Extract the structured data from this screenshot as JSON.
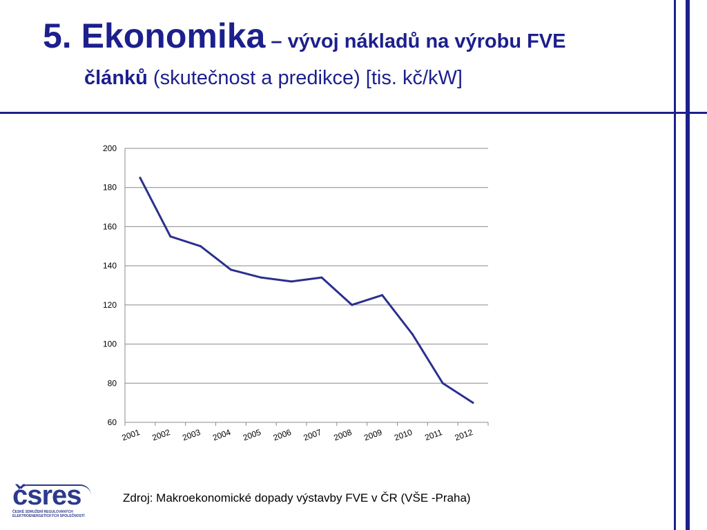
{
  "title": {
    "main": "5. Ekonomika",
    "rest": " – vývoj nákladů na výrobu FVE",
    "line2_bold": "článků",
    "line2_rest": " (skutečnost a predikce) [tis. kč/kW]"
  },
  "source": "Zdroj: Makroekonomické dopady výstavby FVE v ČR (VŠE -Praha)",
  "logo": {
    "text": "čsres",
    "sub1": "ČESKÉ SDRUŽENÍ REGULOVANÝCH",
    "sub2": "ELEKTROENERGETICKÝCH SPOLEČNOSTÍ"
  },
  "colors": {
    "accent": "#1c1f8c",
    "series": "#2b2f8e",
    "grid": "#888888"
  },
  "chart_data": {
    "type": "line",
    "categories": [
      "2001",
      "2002",
      "2003",
      "2004",
      "2005",
      "2006",
      "2007",
      "2008",
      "2009",
      "2010",
      "2011",
      "2012"
    ],
    "values": [
      185,
      155,
      150,
      138,
      134,
      132,
      134,
      120,
      125,
      105,
      80,
      70
    ],
    "ylim": [
      60,
      200
    ],
    "yticks": [
      60,
      80,
      100,
      120,
      140,
      160,
      180,
      200
    ],
    "grid": true,
    "legend": "none",
    "title": "",
    "xlabel": "",
    "ylabel": ""
  }
}
